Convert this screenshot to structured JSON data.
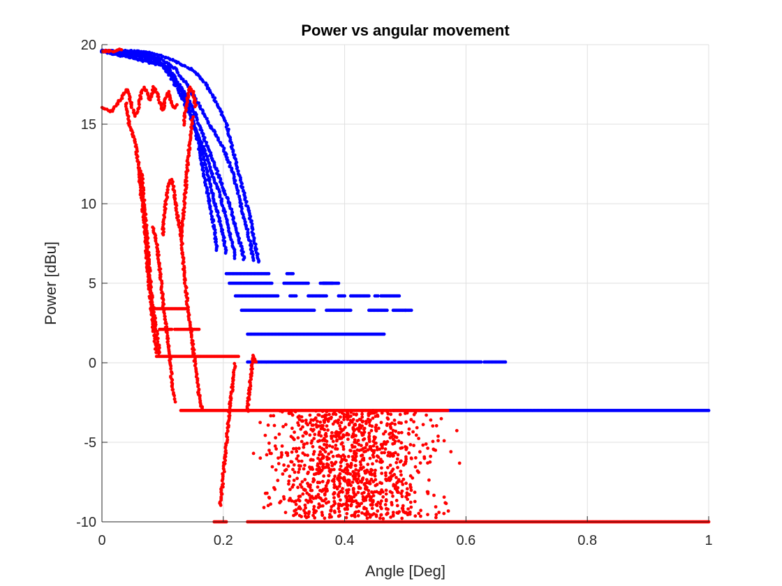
{
  "chart_data": {
    "type": "scatter",
    "title": "Power vs angular movement",
    "xlabel": "Angle [Deg]",
    "ylabel": "Power [dBu]",
    "xlim": [
      0,
      1
    ],
    "ylim": [
      -10,
      20
    ],
    "xticks": [
      0,
      0.2,
      0.4,
      0.6,
      0.8,
      1
    ],
    "xtick_labels": [
      "0",
      "0.2",
      "0.4",
      "0.6",
      "0.8",
      "1"
    ],
    "yticks": [
      -10,
      -5,
      0,
      5,
      10,
      15,
      20
    ],
    "ytick_labels": [
      "-10",
      "-5",
      "0",
      "5",
      "10",
      "15",
      "20"
    ],
    "grid": true,
    "series": [
      {
        "color": "#0000ff",
        "curves": [
          [
            [
              0.0,
              19.6
            ],
            [
              0.05,
              19.6
            ],
            [
              0.09,
              19.4
            ],
            [
              0.12,
              19.0
            ],
            [
              0.15,
              18.4
            ],
            [
              0.17,
              17.6
            ],
            [
              0.19,
              16.3
            ],
            [
              0.205,
              15.0
            ],
            [
              0.215,
              13.5
            ],
            [
              0.225,
              12.0
            ],
            [
              0.235,
              10.5
            ],
            [
              0.245,
              9.0
            ],
            [
              0.252,
              7.5
            ],
            [
              0.26,
              6.2
            ]
          ],
          [
            [
              0.0,
              19.6
            ],
            [
              0.07,
              19.5
            ],
            [
              0.1,
              19.0
            ],
            [
              0.12,
              18.5
            ],
            [
              0.14,
              17.5
            ],
            [
              0.16,
              16.2
            ],
            [
              0.18,
              14.8
            ],
            [
              0.2,
              13.5
            ],
            [
              0.215,
              12.0
            ],
            [
              0.225,
              10.5
            ],
            [
              0.235,
              9.0
            ],
            [
              0.245,
              7.5
            ],
            [
              0.25,
              6.3
            ]
          ],
          [
            [
              0.0,
              19.6
            ],
            [
              0.08,
              19.3
            ],
            [
              0.105,
              18.5
            ],
            [
              0.12,
              18.0
            ],
            [
              0.135,
              17.0
            ],
            [
              0.15,
              16.0
            ],
            [
              0.165,
              14.5
            ],
            [
              0.18,
              13.0
            ],
            [
              0.195,
              11.5
            ],
            [
              0.21,
              10.0
            ],
            [
              0.22,
              8.5
            ],
            [
              0.23,
              7.2
            ],
            [
              0.235,
              6.4
            ]
          ],
          [
            [
              0.0,
              19.6
            ],
            [
              0.09,
              19.1
            ],
            [
              0.11,
              18.2
            ],
            [
              0.125,
              17.2
            ],
            [
              0.14,
              16.0
            ],
            [
              0.155,
              14.6
            ],
            [
              0.17,
              13.2
            ],
            [
              0.18,
              12.0
            ],
            [
              0.195,
              10.5
            ],
            [
              0.205,
              9.0
            ],
            [
              0.215,
              7.5
            ],
            [
              0.22,
              6.5
            ]
          ],
          [
            [
              0.0,
              19.6
            ],
            [
              0.1,
              18.8
            ],
            [
              0.13,
              17.2
            ],
            [
              0.145,
              15.8
            ],
            [
              0.16,
              14.0
            ],
            [
              0.17,
              12.5
            ],
            [
              0.18,
              11.0
            ],
            [
              0.19,
              9.5
            ],
            [
              0.2,
              8.0
            ],
            [
              0.205,
              6.8
            ]
          ],
          [
            [
              0.0,
              19.6
            ],
            [
              0.11,
              18.6
            ],
            [
              0.14,
              16.5
            ],
            [
              0.155,
              14.5
            ],
            [
              0.165,
              12.5
            ],
            [
              0.175,
              10.5
            ],
            [
              0.185,
              8.5
            ],
            [
              0.19,
              7.0
            ]
          ]
        ],
        "segments": [
          [
            0.205,
            0.275,
            5.6
          ],
          [
            0.305,
            0.315,
            5.6
          ],
          [
            0.21,
            0.28,
            5.0
          ],
          [
            0.3,
            0.34,
            5.0
          ],
          [
            0.36,
            0.365,
            5.0
          ],
          [
            0.38,
            0.365,
            5.0
          ],
          [
            0.37,
            0.365,
            5.0
          ],
          [
            0.39,
            0.365,
            5.0
          ],
          [
            0.22,
            0.29,
            4.2
          ],
          [
            0.31,
            0.32,
            4.2
          ],
          [
            0.34,
            0.37,
            4.2
          ],
          [
            0.39,
            0.4,
            4.2
          ],
          [
            0.41,
            0.44,
            4.2
          ],
          [
            0.45,
            0.455,
            4.2
          ],
          [
            0.46,
            0.49,
            4.2
          ],
          [
            0.23,
            0.35,
            3.3
          ],
          [
            0.37,
            0.41,
            3.3
          ],
          [
            0.44,
            0.47,
            3.3
          ],
          [
            0.48,
            0.5,
            3.3
          ],
          [
            0.5,
            0.51,
            3.3
          ],
          [
            0.24,
            0.465,
            1.8
          ],
          [
            0.24,
            0.625,
            0.05
          ],
          [
            0.63,
            0.665,
            0.05
          ],
          [
            0.48,
            1.0,
            -3.0
          ]
        ]
      },
      {
        "color": "#ff0000",
        "curves": [
          [
            [
              0.0,
              16.0
            ],
            [
              0.015,
              15.8
            ],
            [
              0.025,
              16.3
            ],
            [
              0.035,
              16.8
            ],
            [
              0.04,
              17.2
            ],
            [
              0.045,
              16.8
            ],
            [
              0.05,
              16.0
            ],
            [
              0.055,
              15.5
            ],
            [
              0.06,
              16.0
            ],
            [
              0.065,
              17.0
            ],
            [
              0.07,
              17.3
            ],
            [
              0.075,
              16.9
            ],
            [
              0.08,
              16.5
            ],
            [
              0.085,
              17.3
            ],
            [
              0.09,
              17.0
            ],
            [
              0.095,
              16.4
            ],
            [
              0.1,
              15.9
            ],
            [
              0.105,
              16.6
            ],
            [
              0.11,
              17.0
            ],
            [
              0.115,
              16.3
            ],
            [
              0.12,
              16.0
            ],
            [
              0.125,
              16.3
            ]
          ],
          [
            [
              0.04,
              16.3
            ],
            [
              0.045,
              15.0
            ],
            [
              0.05,
              14.5
            ],
            [
              0.055,
              13.8
            ],
            [
              0.06,
              12.5
            ],
            [
              0.065,
              10.5
            ],
            [
              0.07,
              8.5
            ],
            [
              0.075,
              6.0
            ],
            [
              0.08,
              4.0
            ],
            [
              0.085,
              2.0
            ],
            [
              0.09,
              0.5
            ]
          ],
          [
            [
              0.065,
              12.0
            ],
            [
              0.07,
              10.0
            ],
            [
              0.075,
              7.5
            ],
            [
              0.08,
              5.0
            ],
            [
              0.085,
              3.4
            ],
            [
              0.09,
              2.0
            ],
            [
              0.095,
              0.5
            ]
          ],
          [
            [
              0.085,
              8.5
            ],
            [
              0.09,
              7.5
            ],
            [
              0.095,
              6.0
            ],
            [
              0.1,
              4.0
            ],
            [
              0.105,
              2.5
            ],
            [
              0.11,
              1.0
            ],
            [
              0.115,
              -1.0
            ],
            [
              0.12,
              -2.5
            ]
          ],
          [
            [
              0.1,
              8.0
            ],
            [
              0.105,
              10.0
            ],
            [
              0.11,
              11.3
            ],
            [
              0.115,
              11.5
            ],
            [
              0.12,
              10.5
            ],
            [
              0.125,
              9.0
            ],
            [
              0.13,
              8.0
            ],
            [
              0.135,
              9.5
            ],
            [
              0.14,
              12.0
            ],
            [
              0.145,
              14.0
            ],
            [
              0.15,
              15.5
            ]
          ],
          [
            [
              0.13,
              8.5
            ],
            [
              0.135,
              6.0
            ],
            [
              0.14,
              4.0
            ],
            [
              0.145,
              2.5
            ],
            [
              0.15,
              1.0
            ],
            [
              0.155,
              -0.5
            ],
            [
              0.16,
              -2.0
            ],
            [
              0.165,
              -3.0
            ]
          ],
          [
            [
              0.135,
              15.0
            ],
            [
              0.14,
              16.5
            ],
            [
              0.145,
              17.3
            ],
            [
              0.15,
              17.0
            ],
            [
              0.155,
              16.0
            ]
          ],
          [
            [
              0.0,
              19.6
            ],
            [
              0.02,
              19.6
            ],
            [
              0.035,
              19.7
            ]
          ],
          [
            [
              0.195,
              -9.0
            ],
            [
              0.2,
              -7.0
            ],
            [
              0.205,
              -5.0
            ],
            [
              0.21,
              -3.0
            ],
            [
              0.215,
              -1.5
            ],
            [
              0.22,
              0.0
            ]
          ],
          [
            [
              0.24,
              -3.0
            ],
            [
              0.245,
              -1.0
            ],
            [
              0.25,
              0.5
            ],
            [
              0.255,
              0.0
            ]
          ]
        ],
        "segments": [
          [
            0.08,
            0.14,
            3.4
          ],
          [
            0.095,
            0.115,
            2.1
          ],
          [
            0.12,
            0.16,
            2.1
          ],
          [
            0.09,
            0.225,
            0.4
          ],
          [
            0.13,
            0.57,
            -3.0
          ],
          [
            0.24,
            1.0,
            -10.0
          ],
          [
            0.185,
            0.205,
            -10.0
          ]
        ],
        "scatter_region": {
          "x": [
            0.22,
            0.6
          ],
          "y": [
            -9.8,
            -3.0
          ],
          "count": 1100
        }
      }
    ]
  }
}
